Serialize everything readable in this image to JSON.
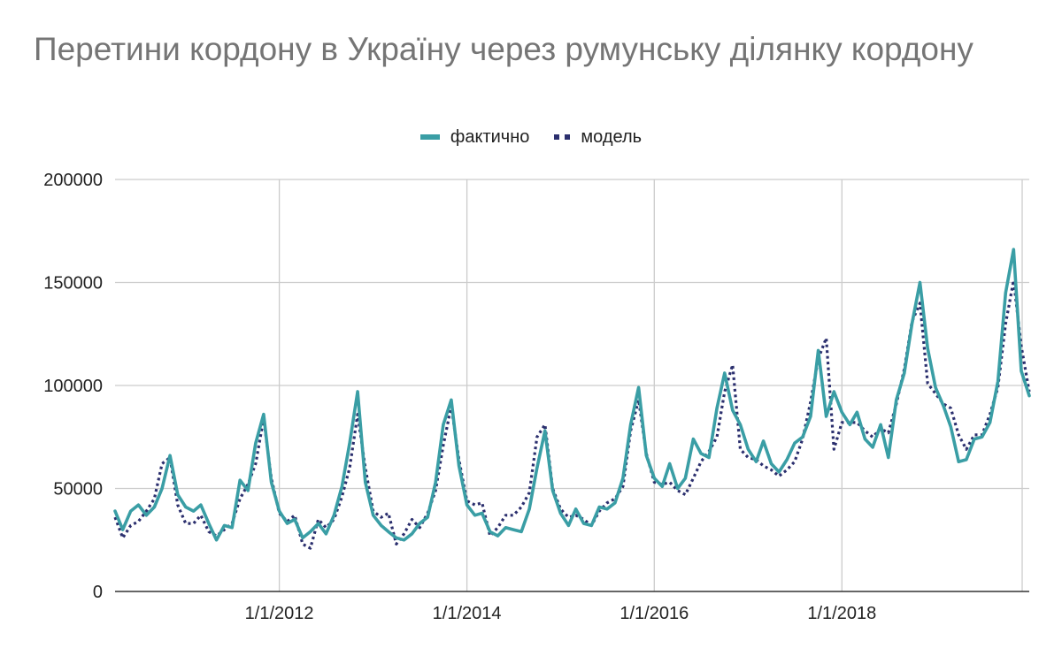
{
  "chart_data": {
    "type": "line",
    "title": "Перетини кордону в Україну через румунську ділянку кордону",
    "xlabel": "",
    "ylabel": "",
    "x_axis": {
      "type": "date",
      "range": [
        "2010-04-01",
        "2020-01-01"
      ],
      "tick_labels": [
        "1/1/2012",
        "1/1/2014",
        "1/1/2016",
        "1/1/2018"
      ],
      "tick_dates": [
        "2012-01-01",
        "2014-01-01",
        "2016-01-01",
        "2018-01-01"
      ]
    },
    "y_axis": {
      "range": [
        0,
        200000
      ],
      "ticks": [
        0,
        50000,
        100000,
        150000,
        200000
      ],
      "tick_labels": [
        "0",
        "50000",
        "100000",
        "150000",
        "200000"
      ]
    },
    "grid": true,
    "legend_position": "top-center",
    "colors": {
      "actual": "#3a9ea5",
      "model": "#2b2f6e",
      "grid": "#cccccc",
      "axis": "#333333"
    },
    "series": [
      {
        "name": "фактично",
        "style": "solid",
        "dates": [
          "2010-04",
          "2010-05",
          "2010-06",
          "2010-07",
          "2010-08",
          "2010-09",
          "2010-10",
          "2010-11",
          "2010-12",
          "2011-01",
          "2011-02",
          "2011-03",
          "2011-04",
          "2011-05",
          "2011-06",
          "2011-07",
          "2011-08",
          "2011-09",
          "2011-10",
          "2011-11",
          "2011-12",
          "2012-01",
          "2012-02",
          "2012-03",
          "2012-04",
          "2012-05",
          "2012-06",
          "2012-07",
          "2012-08",
          "2012-09",
          "2012-10",
          "2012-11",
          "2012-12",
          "2013-01",
          "2013-02",
          "2013-03",
          "2013-04",
          "2013-05",
          "2013-06",
          "2013-07",
          "2013-08",
          "2013-09",
          "2013-10",
          "2013-11",
          "2013-12",
          "2014-01",
          "2014-02",
          "2014-03",
          "2014-04",
          "2014-05",
          "2014-06",
          "2014-07",
          "2014-08",
          "2014-09",
          "2014-10",
          "2014-11",
          "2014-12",
          "2015-01",
          "2015-02",
          "2015-03",
          "2015-04",
          "2015-05",
          "2015-06",
          "2015-07",
          "2015-08",
          "2015-09",
          "2015-10",
          "2015-11",
          "2015-12",
          "2016-01",
          "2016-02",
          "2016-03",
          "2016-04",
          "2016-05",
          "2016-06",
          "2016-07",
          "2016-08",
          "2016-09",
          "2016-10",
          "2016-11",
          "2016-12",
          "2017-01",
          "2017-02",
          "2017-03",
          "2017-04",
          "2017-05",
          "2017-06",
          "2017-07",
          "2017-08",
          "2017-09",
          "2017-10",
          "2017-11",
          "2017-12",
          "2018-01",
          "2018-02",
          "2018-03",
          "2018-04",
          "2018-05",
          "2018-06",
          "2018-07",
          "2018-08",
          "2018-09",
          "2018-10",
          "2018-11",
          "2018-12",
          "2019-01",
          "2019-02",
          "2019-03",
          "2019-04",
          "2019-05",
          "2019-06",
          "2019-07",
          "2019-08",
          "2019-09",
          "2019-10",
          "2019-11",
          "2019-12",
          "2020-01"
        ],
        "values": [
          39000,
          30000,
          39000,
          42000,
          37000,
          41000,
          50000,
          66000,
          47000,
          41000,
          39000,
          42000,
          33000,
          25000,
          32000,
          31000,
          54000,
          49000,
          72000,
          86000,
          53000,
          39000,
          33000,
          35000,
          26000,
          29000,
          33000,
          28000,
          37000,
          51000,
          72000,
          97000,
          53000,
          37000,
          32000,
          29000,
          26000,
          25000,
          28000,
          33000,
          36000,
          53000,
          81000,
          93000,
          61000,
          42000,
          37000,
          38000,
          29000,
          27000,
          31000,
          30000,
          29000,
          40000,
          60000,
          78000,
          49000,
          38000,
          32000,
          40000,
          33000,
          32000,
          41000,
          40000,
          43000,
          55000,
          81000,
          99000,
          66000,
          55000,
          51000,
          62000,
          50000,
          55000,
          74000,
          67000,
          65000,
          89000,
          106000,
          88000,
          81000,
          69000,
          63000,
          73000,
          62000,
          58000,
          64000,
          72000,
          75000,
          85000,
          117000,
          85000,
          97000,
          87000,
          81000,
          87000,
          74000,
          70000,
          81000,
          65000,
          93000,
          106000,
          130000,
          150000,
          118000,
          99000,
          90000,
          80000,
          63000,
          64000,
          74000,
          75000,
          82000,
          102000,
          145000,
          166000,
          107000,
          95000
        ]
      },
      {
        "name": "модель",
        "style": "dotted",
        "dates": [
          "2010-04",
          "2010-05",
          "2010-06",
          "2010-07",
          "2010-08",
          "2010-09",
          "2010-10",
          "2010-11",
          "2010-12",
          "2011-01",
          "2011-02",
          "2011-03",
          "2011-04",
          "2011-05",
          "2011-06",
          "2011-07",
          "2011-08",
          "2011-09",
          "2011-10",
          "2011-11",
          "2011-12",
          "2012-01",
          "2012-02",
          "2012-03",
          "2012-04",
          "2012-05",
          "2012-06",
          "2012-07",
          "2012-08",
          "2012-09",
          "2012-10",
          "2012-11",
          "2012-12",
          "2013-01",
          "2013-02",
          "2013-03",
          "2013-04",
          "2013-05",
          "2013-06",
          "2013-07",
          "2013-08",
          "2013-09",
          "2013-10",
          "2013-11",
          "2013-12",
          "2014-01",
          "2014-02",
          "2014-03",
          "2014-04",
          "2014-05",
          "2014-06",
          "2014-07",
          "2014-08",
          "2014-09",
          "2014-10",
          "2014-11",
          "2014-12",
          "2015-01",
          "2015-02",
          "2015-03",
          "2015-04",
          "2015-05",
          "2015-06",
          "2015-07",
          "2015-08",
          "2015-09",
          "2015-10",
          "2015-11",
          "2015-12",
          "2016-01",
          "2016-02",
          "2016-03",
          "2016-04",
          "2016-05",
          "2016-06",
          "2016-07",
          "2016-08",
          "2016-09",
          "2016-10",
          "2016-11",
          "2016-12",
          "2017-01",
          "2017-02",
          "2017-03",
          "2017-04",
          "2017-05",
          "2017-06",
          "2017-07",
          "2017-08",
          "2017-09",
          "2017-10",
          "2017-11",
          "2017-12",
          "2018-01",
          "2018-02",
          "2018-03",
          "2018-04",
          "2018-05",
          "2018-06",
          "2018-07",
          "2018-08",
          "2018-09",
          "2018-10",
          "2018-11",
          "2018-12",
          "2019-01",
          "2019-02",
          "2019-03",
          "2019-04",
          "2019-05",
          "2019-06",
          "2019-07",
          "2019-08",
          "2019-09",
          "2019-10",
          "2019-11",
          "2019-12",
          "2020-01"
        ],
        "values": [
          36000,
          26000,
          32000,
          34000,
          39000,
          45000,
          62000,
          65000,
          42000,
          33000,
          33000,
          37000,
          29000,
          27000,
          30000,
          33000,
          45000,
          52000,
          62000,
          84000,
          55000,
          38000,
          34000,
          37000,
          23000,
          21000,
          35000,
          31000,
          35000,
          46000,
          60000,
          86000,
          60000,
          39000,
          36000,
          38000,
          23000,
          28000,
          35000,
          31000,
          38000,
          49000,
          71000,
          90000,
          64000,
          44000,
          42000,
          43000,
          27000,
          31000,
          37000,
          37000,
          41000,
          48000,
          75000,
          81000,
          50000,
          40000,
          36000,
          37000,
          35000,
          32000,
          39000,
          43000,
          45000,
          51000,
          78000,
          93000,
          67000,
          53000,
          52000,
          53000,
          49000,
          47000,
          55000,
          63000,
          68000,
          75000,
          97000,
          110000,
          69000,
          65000,
          64000,
          61000,
          59000,
          56000,
          59000,
          63000,
          74000,
          92000,
          113000,
          123000,
          69000,
          82000,
          82000,
          82000,
          78000,
          75000,
          79000,
          77000,
          91000,
          108000,
          131000,
          140000,
          101000,
          96000,
          91000,
          89000,
          76000,
          69000,
          76000,
          76000,
          86000,
          99000,
          130000,
          151000,
          119000,
          97000
        ]
      }
    ]
  }
}
